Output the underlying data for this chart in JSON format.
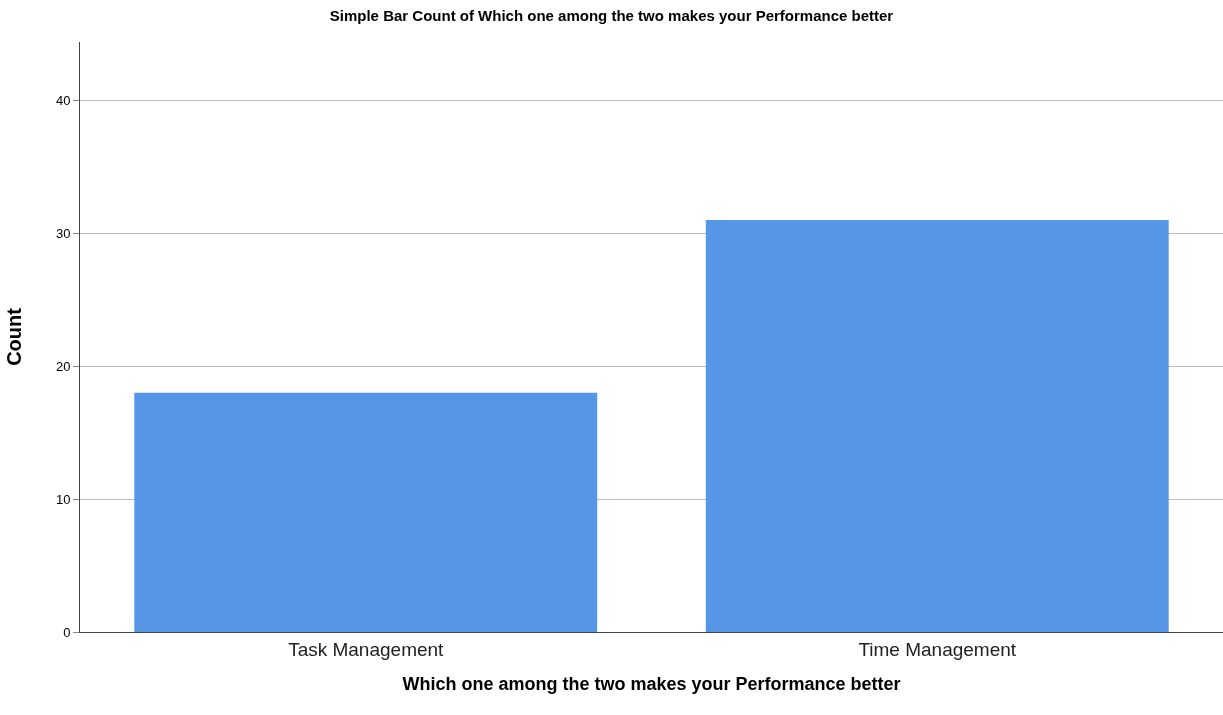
{
  "chart_data": {
    "type": "bar",
    "title": "Simple Bar Count of Which one among the two makes your Performance better",
    "xlabel": "Which one among the two makes your Performance better",
    "ylabel": "Count",
    "categories": [
      "Task Management",
      "Time Management"
    ],
    "values": [
      18,
      31
    ],
    "color": "#5596e6",
    "ylim": [
      0,
      44.4
    ],
    "yticks": [
      0,
      10,
      20,
      30,
      40
    ],
    "grid": "y",
    "legend": false
  }
}
